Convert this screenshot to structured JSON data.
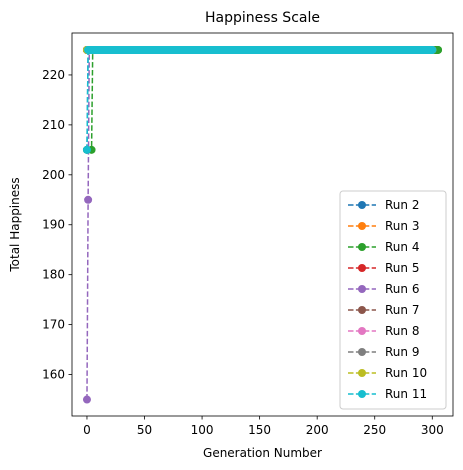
{
  "chart_data": {
    "type": "line",
    "title": "Happiness Scale",
    "xlabel": "Generation Number",
    "ylabel": "Total Happiness",
    "xlim": [
      -13,
      318
    ],
    "ylim": [
      151.7,
      228.4
    ],
    "xticks": [
      0,
      50,
      100,
      150,
      200,
      250,
      300
    ],
    "yticks": [
      160,
      170,
      180,
      190,
      200,
      210,
      220
    ],
    "grid": false,
    "legend_position": "lower-right",
    "line_style": "dashed",
    "marker": "circle",
    "series": [
      {
        "name": "Run 2",
        "color": "#1f77b4",
        "x": [
          0,
          1,
          300
        ],
        "y": [
          205,
          225,
          225
        ]
      },
      {
        "name": "Run 3",
        "color": "#ff7f0e",
        "x": [
          0,
          300
        ],
        "y": [
          225,
          225
        ]
      },
      {
        "name": "Run 4",
        "color": "#2ca02c",
        "x": [
          0,
          4,
          5,
          305
        ],
        "y": [
          205,
          205,
          225,
          225
        ]
      },
      {
        "name": "Run 5",
        "color": "#d62728",
        "x": [
          0,
          300
        ],
        "y": [
          225,
          225
        ]
      },
      {
        "name": "Run 6",
        "color": "#9467bd",
        "x": [
          0,
          1,
          2,
          300
        ],
        "y": [
          155,
          195,
          225,
          225
        ]
      },
      {
        "name": "Run 7",
        "color": "#8c564b",
        "x": [
          0,
          300
        ],
        "y": [
          225,
          225
        ]
      },
      {
        "name": "Run 8",
        "color": "#e377c2",
        "x": [
          0,
          300
        ],
        "y": [
          225,
          225
        ]
      },
      {
        "name": "Run 9",
        "color": "#7f7f7f",
        "x": [
          0,
          300
        ],
        "y": [
          225,
          225
        ]
      },
      {
        "name": "Run 10",
        "color": "#bcbd22",
        "x": [
          0,
          300
        ],
        "y": [
          225,
          225
        ]
      },
      {
        "name": "Run 11",
        "color": "#17becf",
        "x": [
          0,
          1,
          300
        ],
        "y": [
          205,
          225,
          225
        ]
      }
    ]
  }
}
